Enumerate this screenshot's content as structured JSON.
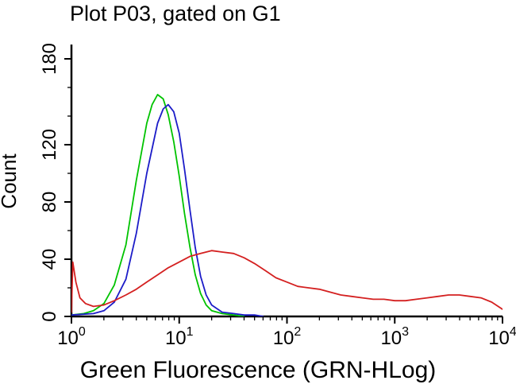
{
  "chart_data": {
    "type": "line",
    "title": "Plot P03, gated on G1",
    "xlabel": "Green Fluorescence (GRN-HLog)",
    "ylabel": "Count",
    "x_scale": "log10",
    "xlim": [
      1,
      10000
    ],
    "ylim": [
      0,
      190
    ],
    "yticks": [
      0,
      40,
      80,
      120,
      180
    ],
    "y_minor_step": 20,
    "xticks": [
      1,
      10,
      100,
      1000,
      10000
    ],
    "xtick_base": "10",
    "xtick_labels": [
      "10^0",
      "10^1",
      "10^2",
      "10^3",
      "10^4"
    ],
    "grid": false,
    "legend": "none",
    "axis_color": "#000000",
    "series": [
      {
        "name": "green-histogram-curve",
        "color": "#00c300",
        "points": [
          [
            1,
            1
          ],
          [
            1.3,
            2
          ],
          [
            1.6,
            4
          ],
          [
            2,
            9
          ],
          [
            2.5,
            22
          ],
          [
            3.2,
            50
          ],
          [
            4,
            95
          ],
          [
            5,
            135
          ],
          [
            5.6,
            148
          ],
          [
            6.3,
            155
          ],
          [
            7.1,
            152
          ],
          [
            7.9,
            141
          ],
          [
            8.9,
            122
          ],
          [
            10,
            98
          ],
          [
            11.2,
            72
          ],
          [
            12.6,
            48
          ],
          [
            14.1,
            29
          ],
          [
            15.8,
            16
          ],
          [
            17.8,
            8
          ],
          [
            20,
            4
          ],
          [
            25,
            2
          ],
          [
            32,
            1
          ],
          [
            40,
            0
          ]
        ]
      },
      {
        "name": "blue-histogram-curve",
        "color": "#1c1cc8",
        "points": [
          [
            1,
            1
          ],
          [
            1.6,
            2
          ],
          [
            2,
            4
          ],
          [
            2.5,
            10
          ],
          [
            3.2,
            26
          ],
          [
            4,
            58
          ],
          [
            5,
            100
          ],
          [
            6.3,
            135
          ],
          [
            7.1,
            145
          ],
          [
            7.9,
            148
          ],
          [
            8.9,
            143
          ],
          [
            10,
            128
          ],
          [
            11.2,
            103
          ],
          [
            12.6,
            74
          ],
          [
            14.1,
            48
          ],
          [
            15.8,
            28
          ],
          [
            17.8,
            15
          ],
          [
            20,
            8
          ],
          [
            25,
            3
          ],
          [
            32,
            2
          ],
          [
            40,
            1
          ],
          [
            50,
            1
          ],
          [
            60,
            0
          ]
        ]
      },
      {
        "name": "red-histogram-curve",
        "color": "#d42020",
        "points": [
          [
            1,
            3
          ],
          [
            1.03,
            38
          ],
          [
            1.1,
            24
          ],
          [
            1.2,
            13
          ],
          [
            1.35,
            9
          ],
          [
            1.6,
            7
          ],
          [
            2,
            8
          ],
          [
            2.5,
            11
          ],
          [
            3.2,
            15
          ],
          [
            4,
            19
          ],
          [
            5,
            24
          ],
          [
            6.3,
            29
          ],
          [
            7.9,
            34
          ],
          [
            10,
            38
          ],
          [
            12.6,
            42
          ],
          [
            15.8,
            44
          ],
          [
            20,
            46
          ],
          [
            25,
            45
          ],
          [
            32,
            44
          ],
          [
            40,
            41
          ],
          [
            50,
            37
          ],
          [
            63,
            32
          ],
          [
            79,
            27
          ],
          [
            100,
            24
          ],
          [
            126,
            21
          ],
          [
            158,
            20
          ],
          [
            200,
            19
          ],
          [
            251,
            17
          ],
          [
            316,
            15
          ],
          [
            398,
            14
          ],
          [
            501,
            13
          ],
          [
            631,
            12
          ],
          [
            794,
            12
          ],
          [
            1000,
            11
          ],
          [
            1259,
            11
          ],
          [
            1585,
            12
          ],
          [
            2000,
            13
          ],
          [
            2512,
            14
          ],
          [
            3162,
            15
          ],
          [
            3981,
            15
          ],
          [
            5012,
            14
          ],
          [
            6310,
            13
          ],
          [
            7943,
            10
          ],
          [
            10000,
            5
          ]
        ]
      }
    ]
  }
}
